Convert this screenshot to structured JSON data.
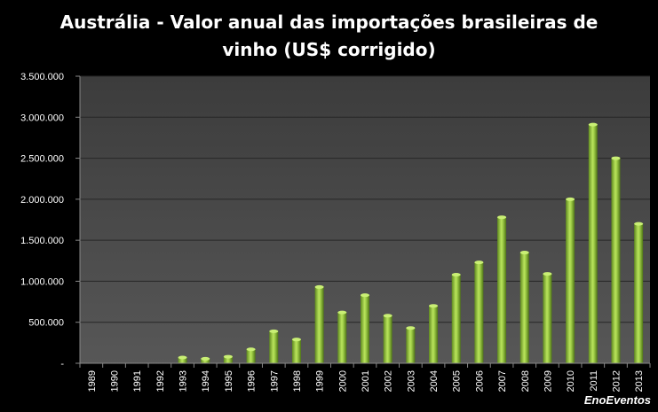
{
  "title_line1": "Austrália - Valor anual das importações  brasileiras de",
  "title_line2": "vinho (US$ corrigido)",
  "watermark": "EnoEventos",
  "colors": {
    "background": "#000000",
    "plot_area": "#4a4a4a",
    "bar": "#a6d74a",
    "bar_dark": "#5a7f1e",
    "grid": "#2a2a2a"
  },
  "chart_data": {
    "type": "bar",
    "title": "Austrália - Valor anual das importações  brasileiras de vinho (US$ corrigido)",
    "xlabel": "",
    "ylabel": "",
    "ylim": [
      0,
      3500000
    ],
    "grid": true,
    "legend": "none",
    "y_ticks": [
      0,
      500000,
      1000000,
      1500000,
      2000000,
      2500000,
      3000000,
      3500000
    ],
    "y_tick_labels": [
      "-",
      "500.000",
      "1.000.000",
      "1.500.000",
      "2.000.000",
      "2.500.000",
      "3.000.000",
      "3.500.000"
    ],
    "categories": [
      "1989",
      "1990",
      "1991",
      "1992",
      "1993",
      "1994",
      "1995",
      "1996",
      "1997",
      "1998",
      "1999",
      "2000",
      "2001",
      "2002",
      "2003",
      "2004",
      "2005",
      "2006",
      "2007",
      "2008",
      "2009",
      "2010",
      "2011",
      "2012",
      "2013"
    ],
    "values": [
      0,
      0,
      0,
      0,
      70000,
      55000,
      80000,
      170000,
      390000,
      290000,
      930000,
      620000,
      830000,
      580000,
      430000,
      700000,
      1080000,
      1230000,
      1780000,
      1350000,
      1090000,
      2000000,
      2910000,
      2500000,
      1700000
    ]
  }
}
